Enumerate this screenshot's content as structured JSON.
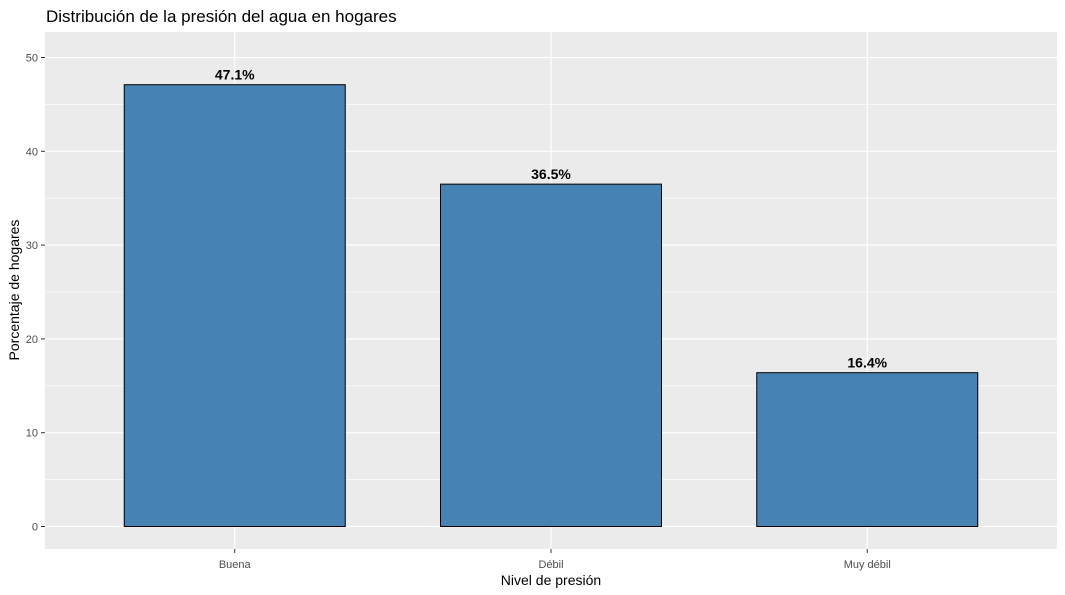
{
  "chart_data": {
    "type": "bar",
    "title": "Distribución de la presión del agua en hogares",
    "xlabel": "Nivel de presión",
    "ylabel": "Porcentaje de hogares",
    "categories": [
      "Buena",
      "Débil",
      "Muy débil"
    ],
    "values": [
      47.1,
      36.5,
      16.4
    ],
    "data_labels": [
      "47.1%",
      "36.5%",
      "16.4%"
    ],
    "ylim": [
      0,
      52
    ],
    "yticks": [
      0,
      10,
      20,
      30,
      40,
      50
    ],
    "ytick_labels": [
      "0",
      "10",
      "20",
      "30",
      "40",
      "50"
    ],
    "grid": true,
    "legend": "none",
    "colors": {
      "bar_fill": "#4682b4",
      "bar_stroke": "#000000",
      "panel_background": "#ebebeb",
      "grid": "#ffffff",
      "tick": "#333333"
    }
  }
}
